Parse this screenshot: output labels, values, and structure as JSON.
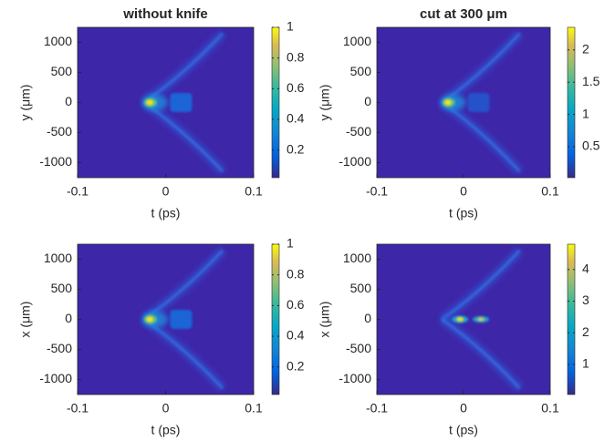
{
  "chart_data": [
    {
      "type": "heatmap",
      "title": "without knife",
      "xlabel": "t (ps)",
      "ylabel": "y (μm)",
      "xlim": [
        -0.1,
        0.1
      ],
      "xticks": [
        -0.1,
        0,
        0.1
      ],
      "ylim": [
        -1250,
        1250
      ],
      "yticks": [
        -1000,
        -500,
        0,
        500,
        1000
      ],
      "clim": [
        0.02,
        1
      ],
      "cticks": [
        0.2,
        0.4,
        0.6,
        0.8,
        1
      ],
      "colormap": "parula"
    },
    {
      "type": "heatmap",
      "title": "cut at 300 μm",
      "xlabel": "t (ps)",
      "ylabel": "y (μm)",
      "xlim": [
        -0.1,
        0.1
      ],
      "xticks": [
        -0.1,
        0,
        0.1
      ],
      "ylim": [
        -1250,
        1250
      ],
      "yticks": [
        -1000,
        -500,
        0,
        500,
        1000
      ],
      "clim": [
        0.02,
        2.35
      ],
      "cticks": [
        0.5,
        1,
        1.5,
        2
      ],
      "colormap": "parula"
    },
    {
      "type": "heatmap",
      "xlabel": "t (ps)",
      "ylabel": "x (μm)",
      "xlim": [
        -0.1,
        0.1
      ],
      "xticks": [
        -0.1,
        0,
        0.1
      ],
      "ylim": [
        -1250,
        1250
      ],
      "yticks": [
        -1000,
        -500,
        0,
        500,
        1000
      ],
      "clim": [
        0.02,
        1
      ],
      "cticks": [
        0.2,
        0.4,
        0.6,
        0.8,
        1
      ],
      "colormap": "parula"
    },
    {
      "type": "heatmap",
      "xlabel": "t (ps)",
      "ylabel": "x (μm)",
      "xlim": [
        -0.1,
        0.1
      ],
      "xticks": [
        -0.1,
        0,
        0.1
      ],
      "ylim": [
        -1250,
        1250
      ],
      "yticks": [
        -1000,
        -500,
        0,
        500,
        1000
      ],
      "clim": [
        0.05,
        4.8
      ],
      "cticks": [
        1,
        2,
        3,
        4
      ],
      "colormap": "parula"
    }
  ]
}
